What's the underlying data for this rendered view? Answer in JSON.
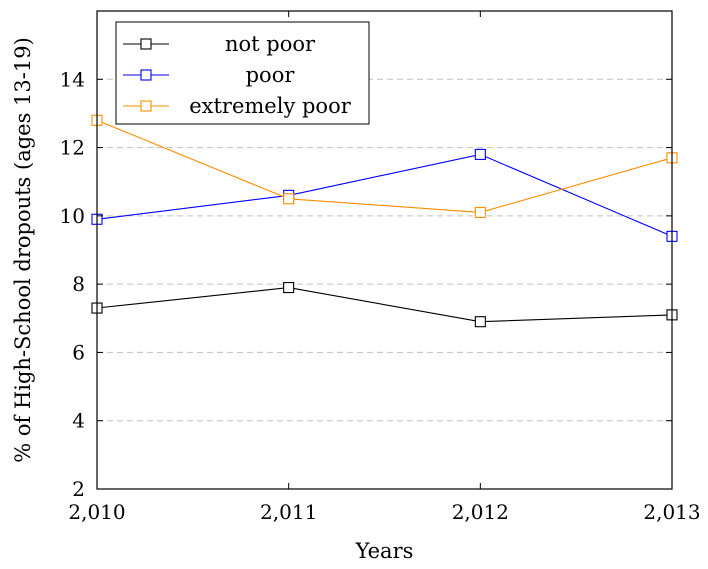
{
  "chart_data": {
    "type": "line",
    "title": "",
    "xlabel": "Years",
    "ylabel": "% of High-School dropouts (ages 13-19)",
    "x": [
      2010,
      2011,
      2012,
      2013
    ],
    "x_tick_labels": [
      "2,010",
      "2,011",
      "2,012",
      "2,013"
    ],
    "y_ticks": [
      2,
      4,
      6,
      8,
      10,
      12,
      14
    ],
    "y_tick_labels": [
      "2",
      "4",
      "6",
      "8",
      "10",
      "12",
      "14"
    ],
    "xlim": [
      2010,
      2013
    ],
    "ylim": [
      2,
      16
    ],
    "grid": {
      "y": true,
      "x": false,
      "style": "dashed"
    },
    "legend": {
      "placement": "top-left"
    },
    "marker": "square",
    "series": [
      {
        "name": "not poor",
        "color": "#000000",
        "values": [
          7.3,
          7.9,
          6.9,
          7.1
        ]
      },
      {
        "name": "poor",
        "color": "#0000ff",
        "values": [
          9.9,
          10.6,
          11.8,
          9.4
        ]
      },
      {
        "name": "extremely poor",
        "color": "#ff8c00",
        "values": [
          12.8,
          10.5,
          10.1,
          11.7
        ]
      }
    ]
  }
}
